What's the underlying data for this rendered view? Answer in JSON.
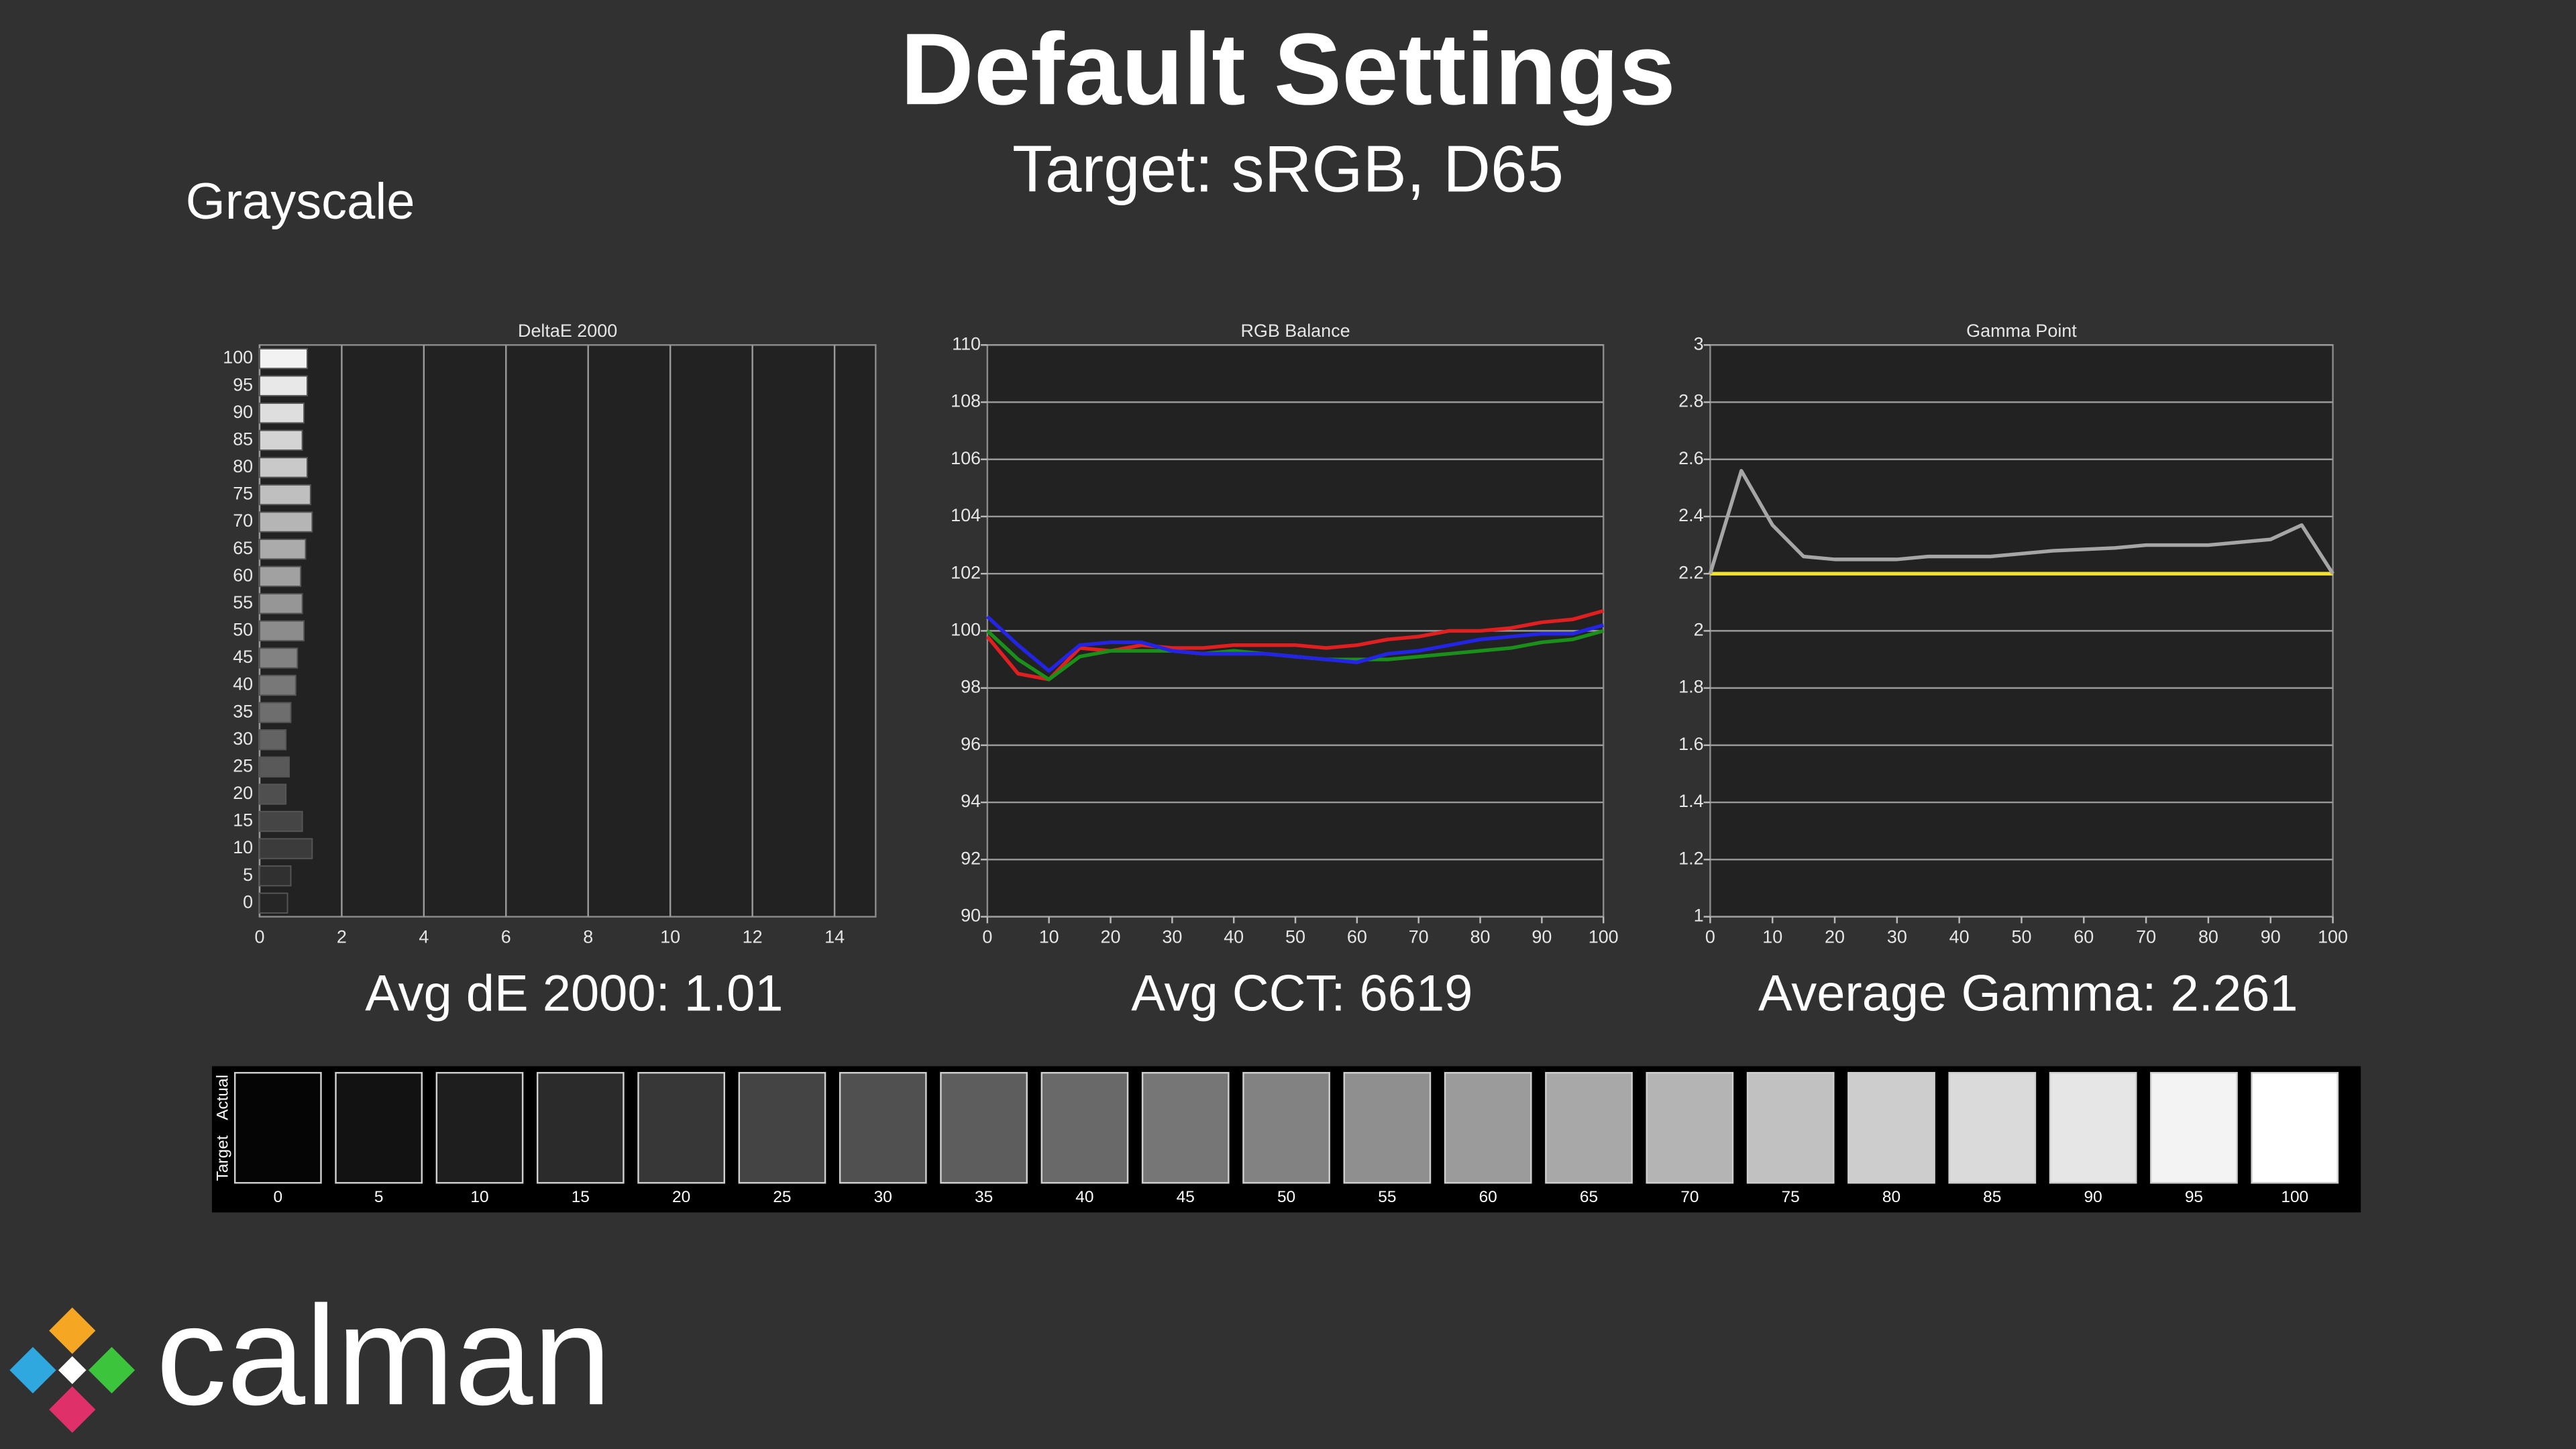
{
  "title": "Default Settings",
  "subtitle": "Target: sRGB, D65",
  "section": "Grayscale",
  "logo": "calman",
  "chart_data": [
    {
      "type": "bar",
      "orientation": "horizontal",
      "title": "DeltaE 2000",
      "annotation": "Avg dE 2000: 1.01",
      "categories": [
        "0",
        "5",
        "10",
        "15",
        "20",
        "25",
        "30",
        "35",
        "40",
        "45",
        "50",
        "55",
        "60",
        "65",
        "70",
        "75",
        "80",
        "85",
        "90",
        "95",
        "100"
      ],
      "values": [
        0.68,
        0.76,
        1.28,
        1.04,
        0.64,
        0.72,
        0.64,
        0.76,
        0.88,
        0.92,
        1.08,
        1.04,
        1.0,
        1.12,
        1.28,
        1.24,
        1.16,
        1.04,
        1.08,
        1.16,
        1.16
      ],
      "xlim": [
        0,
        15
      ],
      "xticks": [
        0,
        2,
        4,
        6,
        8,
        10,
        12,
        14
      ],
      "grid": true
    },
    {
      "type": "line",
      "title": "RGB Balance",
      "annotation": "Avg CCT: 6619",
      "x": [
        0,
        5,
        10,
        15,
        20,
        25,
        30,
        35,
        40,
        45,
        50,
        55,
        60,
        65,
        70,
        75,
        80,
        85,
        90,
        95,
        100
      ],
      "series": [
        {
          "color": "#e02020",
          "values": [
            99.8,
            98.5,
            98.3,
            99.4,
            99.3,
            99.5,
            99.4,
            99.4,
            99.5,
            99.5,
            99.5,
            99.4,
            99.5,
            99.7,
            99.8,
            100.0,
            100.0,
            100.1,
            100.3,
            100.4,
            100.7
          ]
        },
        {
          "color": "#1a8f1a",
          "values": [
            100.0,
            99.0,
            98.3,
            99.1,
            99.3,
            99.3,
            99.3,
            99.2,
            99.3,
            99.2,
            99.1,
            99.0,
            99.0,
            99.0,
            99.1,
            99.2,
            99.3,
            99.4,
            99.6,
            99.7,
            100.0
          ]
        },
        {
          "color": "#2424e6",
          "values": [
            100.5,
            99.5,
            98.6,
            99.5,
            99.6,
            99.6,
            99.3,
            99.2,
            99.2,
            99.2,
            99.1,
            99.0,
            98.9,
            99.2,
            99.3,
            99.5,
            99.7,
            99.8,
            99.9,
            99.9,
            100.2
          ]
        }
      ],
      "xlim": [
        0,
        100
      ],
      "xticks": [
        0,
        10,
        20,
        30,
        40,
        50,
        60,
        70,
        80,
        90,
        100
      ],
      "ylim": [
        90,
        110
      ],
      "yticks": [
        90,
        92,
        94,
        96,
        98,
        100,
        102,
        104,
        106,
        108,
        110
      ],
      "grid": true
    },
    {
      "type": "line",
      "title": "Gamma Point",
      "annotation": "Average Gamma: 2.261",
      "x": [
        0,
        5,
        10,
        15,
        20,
        25,
        30,
        35,
        40,
        45,
        50,
        55,
        60,
        65,
        70,
        75,
        80,
        85,
        90,
        95,
        100
      ],
      "series": [
        {
          "color": "#f2e232",
          "values": [
            2.2,
            2.2,
            2.2,
            2.2,
            2.2,
            2.2,
            2.2,
            2.2,
            2.2,
            2.2,
            2.2,
            2.2,
            2.2,
            2.2,
            2.2,
            2.2,
            2.2,
            2.2,
            2.2,
            2.2,
            2.2
          ]
        },
        {
          "color": "#a6a6a6",
          "values": [
            2.2,
            2.56,
            2.37,
            2.26,
            2.25,
            2.25,
            2.25,
            2.26,
            2.26,
            2.26,
            2.27,
            2.28,
            2.285,
            2.29,
            2.3,
            2.3,
            2.3,
            2.31,
            2.32,
            2.37,
            2.2
          ]
        }
      ],
      "xlim": [
        0,
        100
      ],
      "xticks": [
        0,
        10,
        20,
        30,
        40,
        50,
        60,
        70,
        80,
        90,
        100
      ],
      "ylim": [
        1,
        3
      ],
      "yticks": [
        1,
        1.2,
        1.4,
        1.6,
        1.8,
        2,
        2.2,
        2.4,
        2.6,
        2.8,
        3
      ],
      "grid": true
    }
  ],
  "swatches": {
    "actual_label": "Actual",
    "target_label": "Target",
    "labels": [
      "0",
      "5",
      "10",
      "15",
      "20",
      "25",
      "30",
      "35",
      "40",
      "45",
      "50",
      "55",
      "60",
      "65",
      "70",
      "75",
      "80",
      "85",
      "90",
      "95",
      "100"
    ]
  }
}
